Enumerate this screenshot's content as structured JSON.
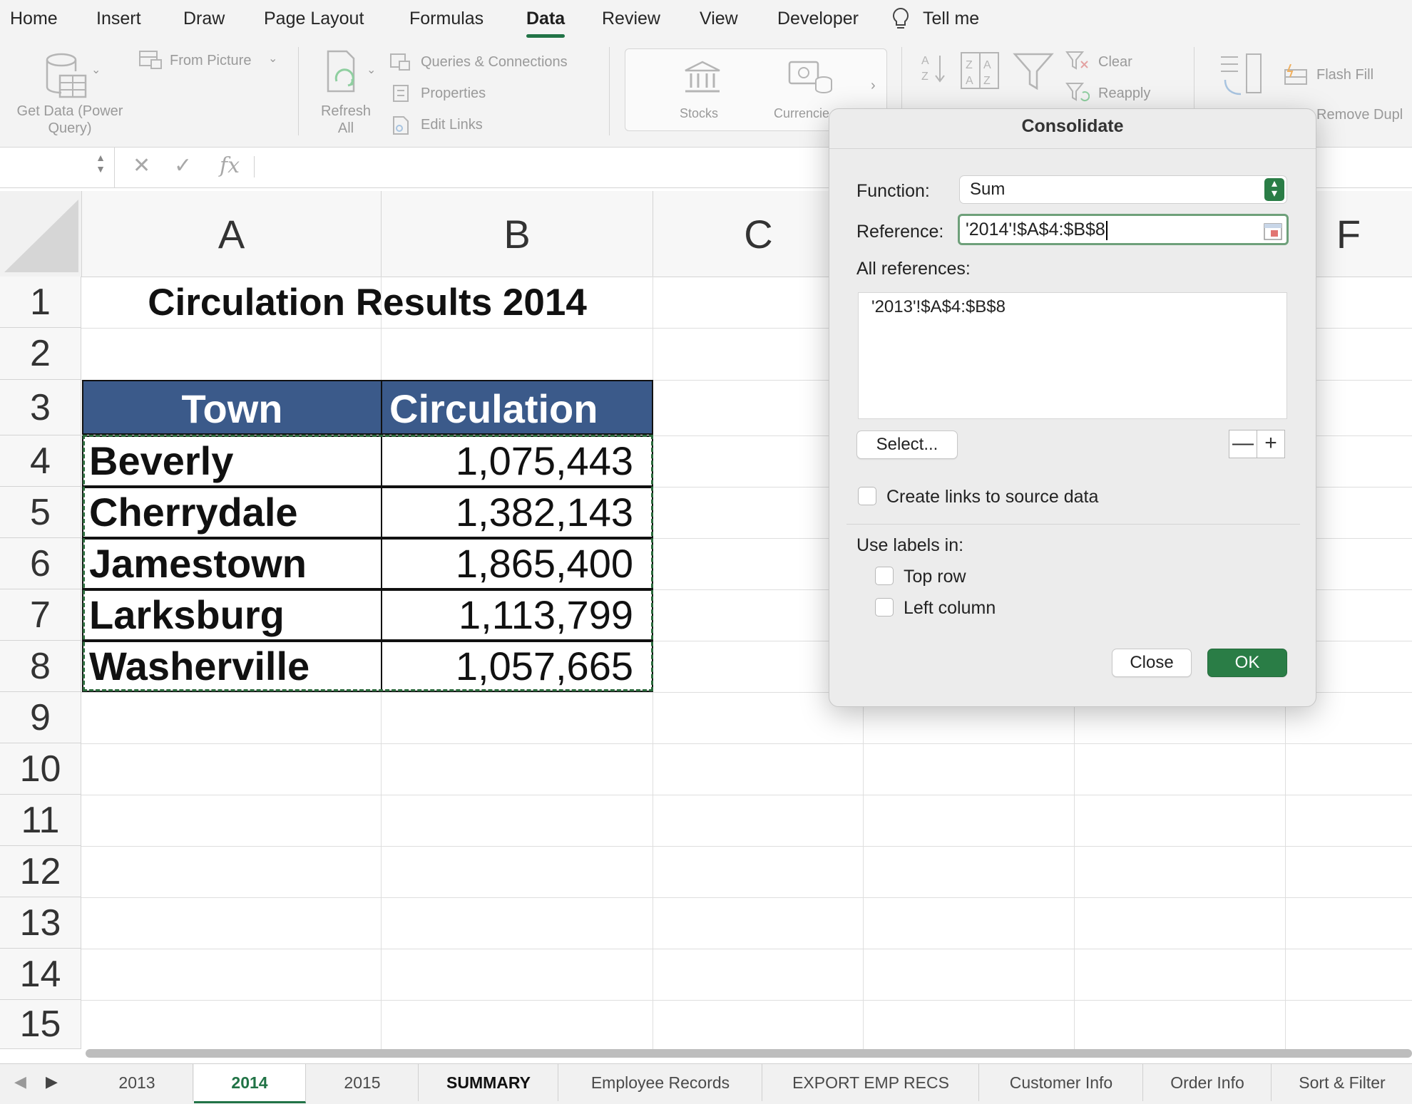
{
  "menu": {
    "tabs": [
      "Home",
      "Insert",
      "Draw",
      "Page Layout",
      "Formulas",
      "Data",
      "Review",
      "View",
      "Developer"
    ],
    "active": "Data",
    "tell_me": "Tell me"
  },
  "ribbon": {
    "get_data": "Get Data (Power Query)",
    "get_data_l1": "Get Data (Power",
    "get_data_l2": "Query)",
    "from_picture": "From Picture",
    "refresh_l1": "Refresh",
    "refresh_l2": "All",
    "queries": "Queries & Connections",
    "properties": "Properties",
    "edit_links": "Edit Links",
    "stocks": "Stocks",
    "currencies": "Currencie",
    "clear": "Clear",
    "reapply": "Reapply",
    "flash_fill": "Flash Fill",
    "remove_dup": "Remove Dupl"
  },
  "formula_bar": {
    "fx": "fx",
    "cancel": "✕",
    "enter": "✓"
  },
  "sheet": {
    "columns": [
      "A",
      "B",
      "C",
      "F"
    ],
    "rows": [
      "1",
      "2",
      "3",
      "4",
      "5",
      "6",
      "7",
      "8",
      "9",
      "10",
      "11",
      "12",
      "13",
      "14",
      "15"
    ],
    "title": "Circulation Results 2014",
    "headers": [
      "Town",
      "Circulation"
    ],
    "data": [
      {
        "town": "Beverly",
        "circulation": "1,075,443"
      },
      {
        "town": "Cherrydale",
        "circulation": "1,382,143"
      },
      {
        "town": "Jamestown",
        "circulation": "1,865,400"
      },
      {
        "town": "Larksburg",
        "circulation": "1,113,799"
      },
      {
        "town": "Washerville",
        "circulation": "1,057,665"
      }
    ],
    "header_color": "#3b5a8a"
  },
  "sheet_tabs": {
    "tabs": [
      "2013",
      "2014",
      "2015",
      "SUMMARY",
      "Employee Records",
      "EXPORT EMP RECS",
      "Customer Info",
      "Order Info",
      "Sort & Filter"
    ],
    "active": "2014"
  },
  "dialog": {
    "title": "Consolidate",
    "function_label": "Function:",
    "function_value": "Sum",
    "reference_label": "Reference:",
    "reference_value": "'2014'!$A$4:$B$8",
    "all_references_label": "All references:",
    "all_references": [
      "'2013'!$A$4:$B$8"
    ],
    "select_button": "Select...",
    "minus": "—",
    "plus": "+",
    "create_links": "Create links to source data",
    "use_labels": "Use labels in:",
    "top_row": "Top row",
    "left_column": "Left column",
    "close_button": "Close",
    "ok_button": "OK",
    "accent": "#2a7d46"
  }
}
